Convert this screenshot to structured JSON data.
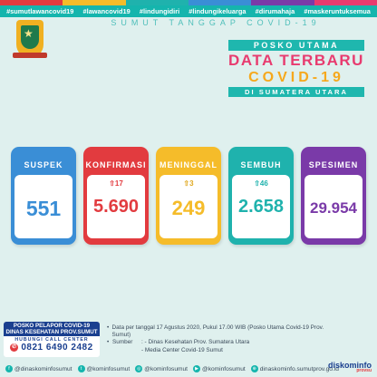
{
  "hashtags": [
    "#sumutlawancovid19",
    "#lawancovid19",
    "#lindungidiri",
    "#lindungikeluarga",
    "#dirumahaja",
    "#maskeruntuksemua"
  ],
  "subtitle": "SUMUT TANGGAP COVID-19",
  "title": {
    "line1": "POSKO UTAMA",
    "line2": "DATA TERBARU",
    "line3": "COVID-19",
    "line4": "DI SUMATERA UTARA"
  },
  "cards": [
    {
      "label": "SUSPEK",
      "delta": "",
      "value": "551",
      "color": "#3a8ed6"
    },
    {
      "label": "KONFIRMASI",
      "delta": "17",
      "value": "5.690",
      "color": "#e23b3f"
    },
    {
      "label": "MENINGGAL",
      "delta": "3",
      "value": "249",
      "color": "#f5bc2a"
    },
    {
      "label": "SEMBUH",
      "delta": "46",
      "value": "2.658",
      "color": "#1fb2ad"
    },
    {
      "label": "SPESIMEN",
      "delta": "",
      "value": "29.954",
      "color": "#7a3aa8"
    }
  ],
  "arrow_glyph": "⇧",
  "infobox": {
    "line1": "POSKO PELAPOR COVID-19",
    "line2": "DINAS KESEHATAN PROV.SUMUT",
    "line3": "HUBUNGI CALL CENTER",
    "phone": "0821 6490 2482"
  },
  "notes": {
    "data": "Data per tanggal 17 Agustus 2020, Pukul 17.00 WIB (Posko Utama Covid-19 Prov. Sumut)",
    "source_label": "Sumber",
    "source1": ": - Dinas Kesehatan Prov. Sumatera Utara",
    "source2": "- Media Center Covid-19 Sumut"
  },
  "socials": [
    "@dinaskominfosumut",
    "@kominfosumut",
    "@kominfosumut",
    "@kominfosumut",
    "dinaskominfo.sumutprov.go.id"
  ],
  "logo": {
    "main": "diskominfo",
    "sub": "provsu"
  }
}
